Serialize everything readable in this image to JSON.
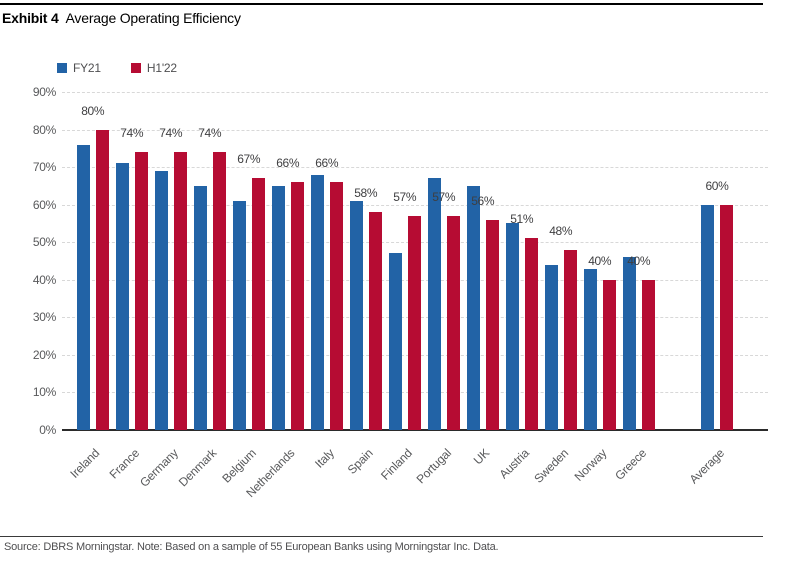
{
  "header": {
    "exhibit_label": "Exhibit 4",
    "title": "Average Operating Efficiency"
  },
  "chart_data": {
    "type": "bar",
    "title": "Average Operating Efficiency",
    "categories": [
      "Ireland",
      "France",
      "Germany",
      "Denmark",
      "Belgium",
      "Netherlands",
      "Italy",
      "Spain",
      "Finland",
      "Portugal",
      "UK",
      "Austria",
      "Sweden",
      "Norway",
      "Greece",
      "Average"
    ],
    "series": [
      {
        "name": "FY21",
        "color": "#2263a6",
        "values": [
          76,
          71,
          69,
          65,
          61,
          65,
          68,
          61,
          47,
          67,
          65,
          55,
          44,
          43,
          46,
          60
        ]
      },
      {
        "name": "H1'22",
        "color": "#b60c33",
        "values": [
          80,
          74,
          74,
          74,
          67,
          66,
          66,
          58,
          57,
          57,
          56,
          51,
          48,
          40,
          40,
          60
        ]
      }
    ],
    "value_labels": [
      "80%",
      "74%",
      "74%",
      "74%",
      "67%",
      "66%",
      "66%",
      "58%",
      "57%",
      "57%",
      "56%",
      "51%",
      "48%",
      "40%",
      "40%",
      "60%"
    ],
    "yticks": [
      "0%",
      "10%",
      "20%",
      "30%",
      "40%",
      "50%",
      "60%",
      "70%",
      "80%",
      "90%"
    ],
    "ylim": [
      0,
      90
    ],
    "unit": "%",
    "grid": "dashed-horizontal",
    "legend_position": "top-left",
    "colors": {
      "grid": "#d8d8d8",
      "axis": "#2b2b2b",
      "tick_text": "#58595b",
      "value_text": "#3f3f41"
    }
  },
  "footer": {
    "source": "Source: DBRS Morningstar. Note: Based on a sample of 55 European Banks using Morningstar Inc. Data."
  }
}
